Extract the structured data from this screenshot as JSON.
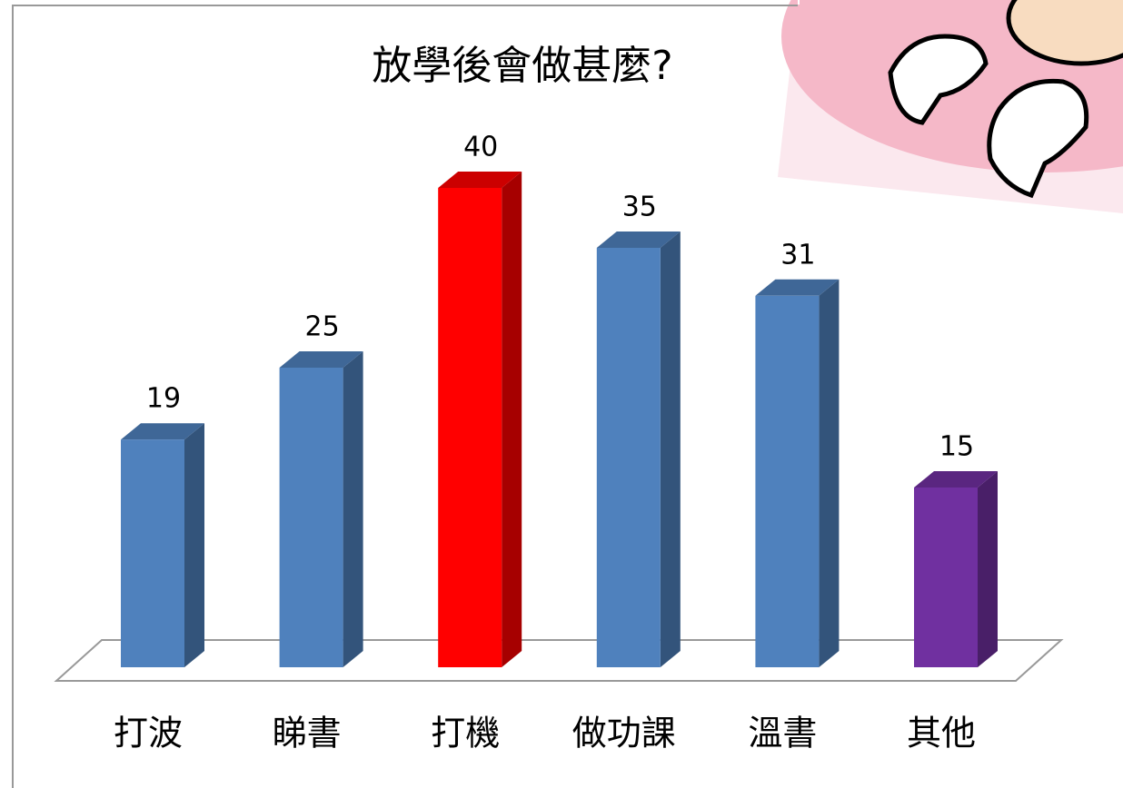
{
  "chart_data": {
    "type": "bar3d",
    "title": "放學後會做甚麼?",
    "categories": [
      "打波",
      "睇書",
      "打機",
      "做功課",
      "溫書",
      "其他"
    ],
    "values": [
      19,
      25,
      40,
      35,
      31,
      15
    ],
    "colors": [
      "#4f81bd",
      "#4f81bd",
      "#ff0000",
      "#4f81bd",
      "#4f81bd",
      "#7030a0"
    ]
  }
}
